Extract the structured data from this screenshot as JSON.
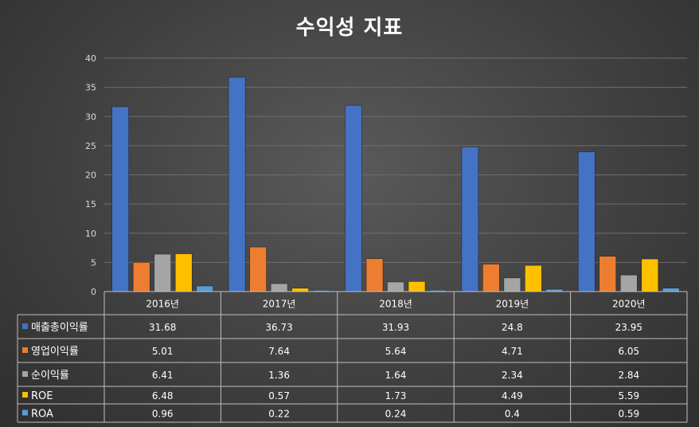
{
  "chart_data": {
    "type": "bar",
    "title": "수익성 지표",
    "categories": [
      "2016년",
      "2017년",
      "2018년",
      "2019년",
      "2020년"
    ],
    "series": [
      {
        "name": "매출총이익률",
        "color": "#4472c4",
        "values": [
          31.68,
          36.73,
          31.93,
          24.8,
          23.95
        ]
      },
      {
        "name": "영업이익률",
        "color": "#ed7d31",
        "values": [
          5.01,
          7.64,
          5.64,
          4.71,
          6.05
        ]
      },
      {
        "name": "순이익률",
        "color": "#a5a5a5",
        "values": [
          6.41,
          1.36,
          1.64,
          2.34,
          2.84
        ]
      },
      {
        "name": "ROE",
        "color": "#ffc000",
        "values": [
          6.48,
          0.57,
          1.73,
          4.49,
          5.59
        ]
      },
      {
        "name": "ROA",
        "color": "#5b9bd5",
        "values": [
          0.96,
          0.22,
          0.24,
          0.4,
          0.59
        ]
      }
    ],
    "ylim": [
      0,
      40
    ],
    "yticks": [
      0,
      5,
      10,
      15,
      20,
      25,
      30,
      35,
      40
    ],
    "grid": true,
    "legend_placement": "data-table"
  },
  "table_values": [
    [
      "31.68",
      "36.73",
      "31.93",
      "24.8",
      "23.95"
    ],
    [
      "5.01",
      "7.64",
      "5.64",
      "4.71",
      "6.05"
    ],
    [
      "6.41",
      "1.36",
      "1.64",
      "2.34",
      "2.84"
    ],
    [
      "6.48",
      "0.57",
      "1.73",
      "4.49",
      "5.59"
    ],
    [
      "0.96",
      "0.22",
      "0.24",
      "0.4",
      "0.59"
    ]
  ]
}
